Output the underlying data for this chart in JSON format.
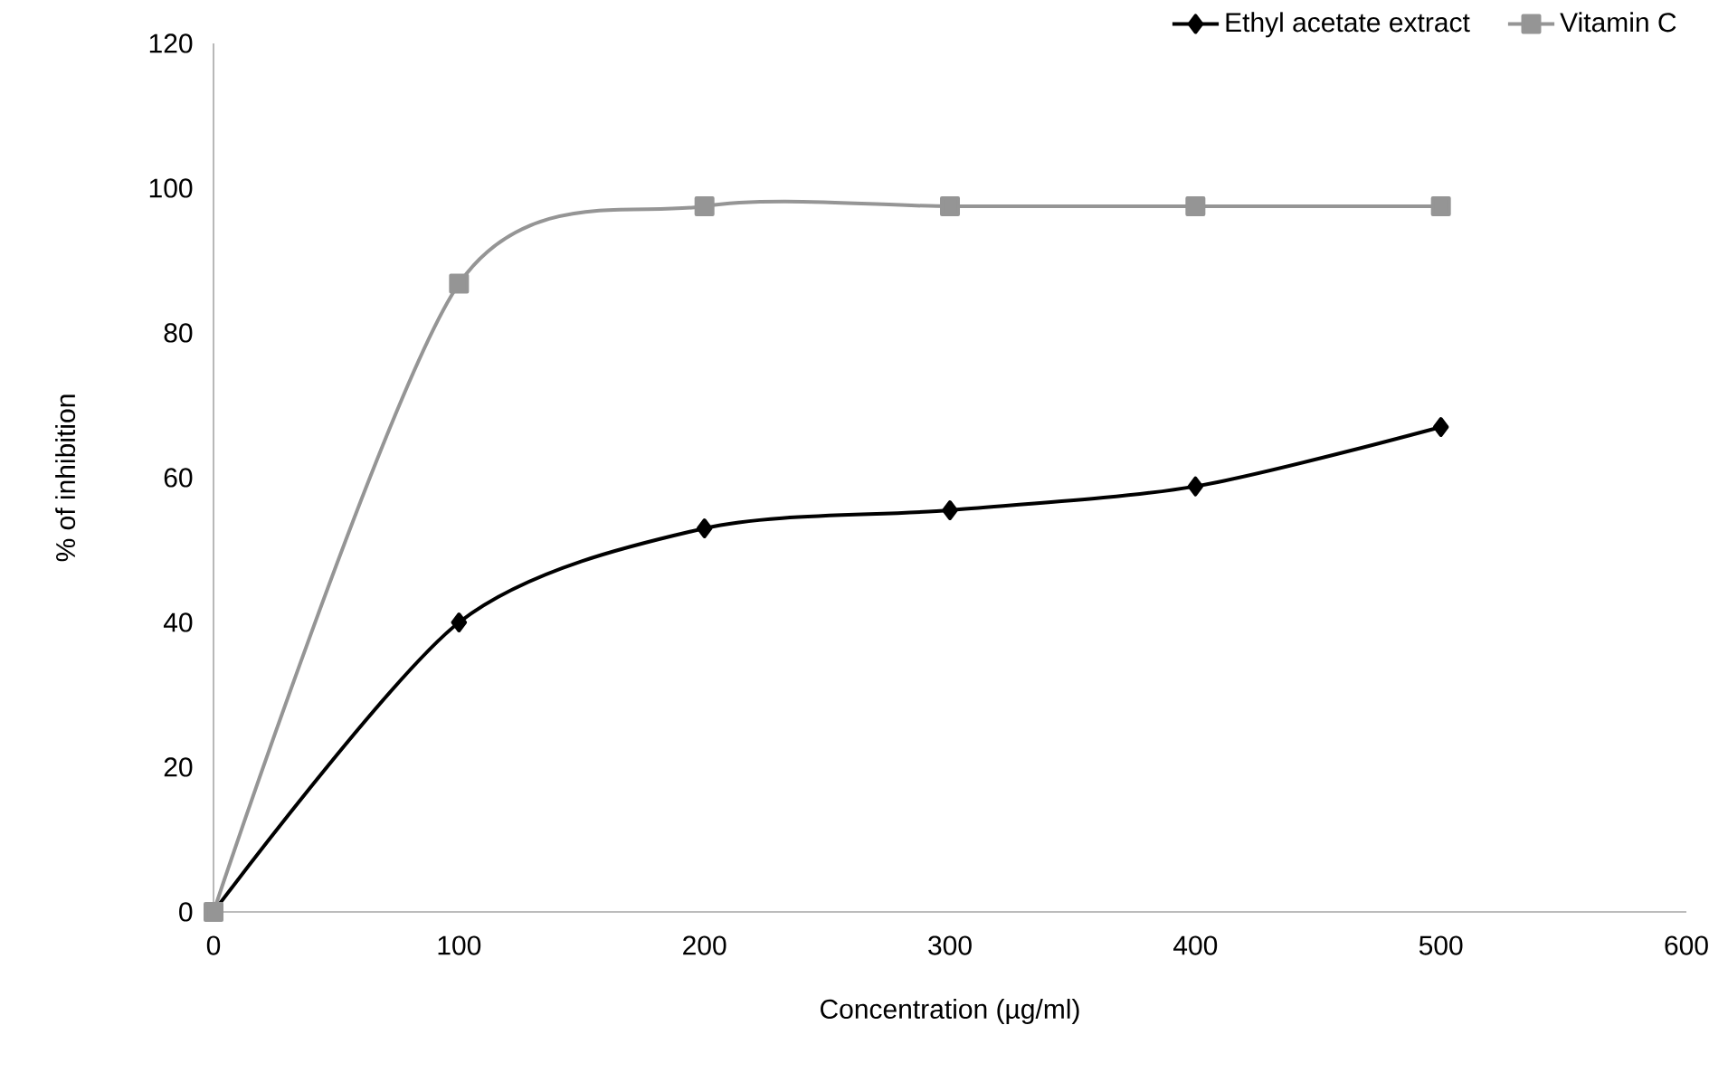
{
  "chart_data": {
    "type": "line",
    "xlabel": "Concentration (µg/ml)",
    "ylabel": "% of inhibition",
    "x": [
      0,
      100,
      200,
      300,
      400,
      500
    ],
    "series": [
      {
        "name": "Ethyl acetate extract",
        "color": "#000000",
        "marker": "diamond",
        "values": [
          0,
          40,
          53,
          55.5,
          58.8,
          67
        ]
      },
      {
        "name": "Vitamin C",
        "color": "#959595",
        "marker": "square",
        "values": [
          0,
          86.8,
          97.5,
          97.5,
          97.5,
          97.5
        ]
      }
    ],
    "xlim": [
      0,
      600
    ],
    "xticks": [
      0,
      100,
      200,
      300,
      400,
      500,
      600
    ],
    "ylim": [
      0,
      120
    ],
    "yticks": [
      0,
      20,
      40,
      60,
      80,
      100,
      120
    ],
    "grid": false,
    "legend": "top right",
    "line_style": "solid"
  }
}
